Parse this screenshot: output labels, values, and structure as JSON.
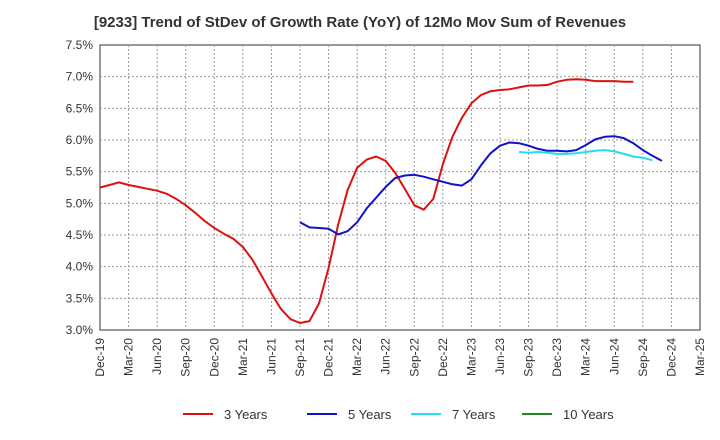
{
  "chart_data": {
    "type": "line",
    "title": "[9233]  Trend of StDev of Growth Rate (YoY) of 12Mo Mov Sum of Revenues",
    "xlabel": "",
    "ylabel": "",
    "ylim": [
      3.0,
      7.5
    ],
    "y_ticks": [
      "3.0%",
      "3.5%",
      "4.0%",
      "4.5%",
      "5.0%",
      "5.5%",
      "6.0%",
      "6.5%",
      "7.0%",
      "7.5%"
    ],
    "y_tick_values": [
      3.0,
      3.5,
      4.0,
      4.5,
      5.0,
      5.5,
      6.0,
      6.5,
      7.0,
      7.5
    ],
    "x_ticks": [
      "Dec-19",
      "Mar-20",
      "Jun-20",
      "Sep-20",
      "Dec-20",
      "Mar-21",
      "Jun-21",
      "Sep-21",
      "Dec-21",
      "Mar-22",
      "Jun-22",
      "Sep-22",
      "Dec-22",
      "Mar-23",
      "Jun-23",
      "Sep-23",
      "Dec-23",
      "Mar-24",
      "Jun-24",
      "Sep-24",
      "Dec-24",
      "Mar-25"
    ],
    "grid": true,
    "legend_position": "bottom",
    "series": [
      {
        "name": "3 Years",
        "color": "#dd1111",
        "start_index": 0,
        "values": [
          5.25,
          5.29,
          5.33,
          5.29,
          5.26,
          5.23,
          5.2,
          5.15,
          5.07,
          4.97,
          4.85,
          4.72,
          4.61,
          4.52,
          4.44,
          4.31,
          4.11,
          3.85,
          3.58,
          3.33,
          3.17,
          3.11,
          3.14,
          3.42,
          3.98,
          4.66,
          5.21,
          5.56,
          5.69,
          5.74,
          5.67,
          5.48,
          5.23,
          4.97,
          4.9,
          5.07,
          5.62,
          6.05,
          6.35,
          6.58,
          6.71,
          6.77,
          6.79,
          6.8,
          6.83,
          6.86,
          6.86,
          6.87,
          6.92,
          6.95,
          6.96,
          6.95,
          6.93,
          6.93,
          6.93,
          6.92,
          6.92
        ]
      },
      {
        "name": "5 Years",
        "color": "#1111cc",
        "start_index": 21,
        "values": [
          4.7,
          4.62,
          4.61,
          4.6,
          4.51,
          4.56,
          4.7,
          4.92,
          5.09,
          5.26,
          5.4,
          5.44,
          5.45,
          5.42,
          5.38,
          5.34,
          5.3,
          5.28,
          5.38,
          5.6,
          5.79,
          5.91,
          5.96,
          5.95,
          5.91,
          5.86,
          5.83,
          5.83,
          5.82,
          5.84,
          5.92,
          6.01,
          6.05,
          6.06,
          6.03,
          5.95,
          5.84,
          5.75,
          5.67
        ]
      },
      {
        "name": "7 Years",
        "color": "#22ddee",
        "start_index": 44,
        "values": [
          5.81,
          5.8,
          5.81,
          5.8,
          5.78,
          5.78,
          5.79,
          5.81,
          5.83,
          5.84,
          5.82,
          5.78,
          5.74,
          5.72,
          5.68
        ]
      },
      {
        "name": "10 Years",
        "color": "#228822",
        "start_index": 0,
        "values": []
      }
    ]
  }
}
